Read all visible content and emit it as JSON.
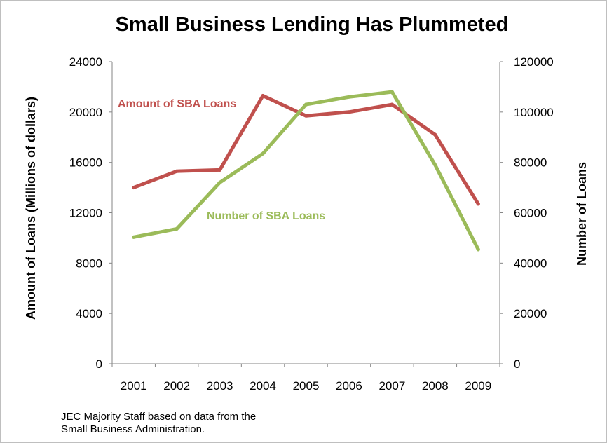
{
  "chart_data": {
    "type": "line",
    "title": "Small Business Lending Has Plummeted",
    "categories": [
      "2001",
      "2002",
      "2003",
      "2004",
      "2005",
      "2006",
      "2007",
      "2008",
      "2009"
    ],
    "ylabel_left": "Amount of Loans (Millions of dollars)",
    "ylabel_right": "Number of Loans",
    "ylim_left": [
      0,
      24000
    ],
    "ylim_right": [
      0,
      120000
    ],
    "yticks_left": [
      "0",
      "4000",
      "8000",
      "12000",
      "16000",
      "20000",
      "24000"
    ],
    "yticks_right": [
      "0",
      "20000",
      "40000",
      "60000",
      "80000",
      "100000",
      "120000"
    ],
    "grid": false,
    "series": [
      {
        "name": "Amount of SBA Loans",
        "axis": "left",
        "color": "#c0504d",
        "values": [
          14000,
          15300,
          15400,
          21300,
          19700,
          20000,
          20600,
          18200,
          12700
        ]
      },
      {
        "name": "Number of SBA Loans",
        "axis": "right",
        "color": "#9bbb59",
        "values": [
          50300,
          53600,
          72000,
          83500,
          103000,
          106000,
          108000,
          79000,
          45400
        ]
      }
    ]
  },
  "source_line1": "JEC Majority Staff based on data from the",
  "source_line2": "Small Business Administration."
}
